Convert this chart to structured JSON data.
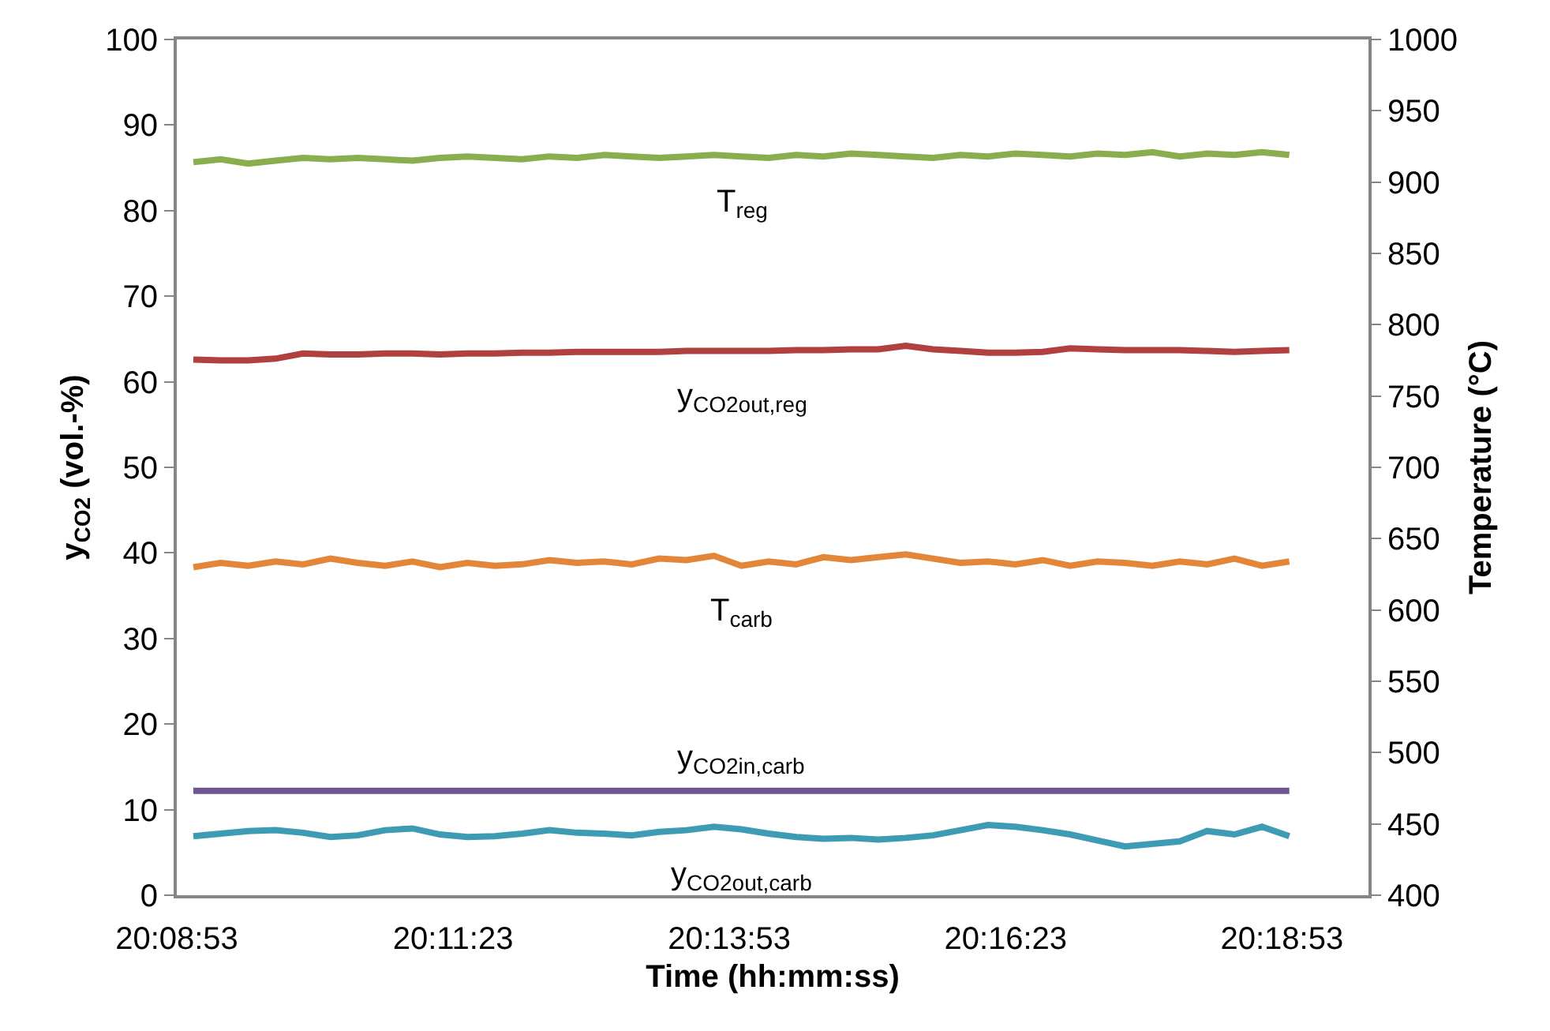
{
  "chart_data": {
    "type": "line",
    "xlabel": "Time (hh:mm:ss)",
    "ylabel": "y$_{CO2}$ (vol.-%)",
    "y2label": "Temperature (°C)",
    "x": [
      20.15056,
      20.15469,
      20.15882,
      20.16295,
      20.16709,
      20.17122,
      20.17535,
      20.17948,
      20.18361,
      20.18775,
      20.19188,
      20.19601,
      20.20014,
      20.20427,
      20.20841,
      20.21254,
      20.21667,
      20.2208,
      20.22493,
      20.22907,
      20.2332,
      20.23733,
      20.24146,
      20.24559,
      20.24973,
      20.25386,
      20.25799,
      20.26212,
      20.26625,
      20.27039,
      20.27452,
      20.27865,
      20.28278,
      20.28691,
      20.29105,
      20.29518,
      20.29931,
      20.30344,
      20.30757,
      20.31171,
      20.31584
    ],
    "xlim": [
      20.14806,
      20.32778
    ],
    "xticks": [
      {
        "value": 20.14806,
        "label": "20:08:53"
      },
      {
        "value": 20.18972,
        "label": "20:11:23"
      },
      {
        "value": 20.23139,
        "label": "20:13:53"
      },
      {
        "value": 20.27306,
        "label": "20:16:23"
      },
      {
        "value": 20.31472,
        "label": "20:18:53"
      }
    ],
    "ylim": [
      0,
      100
    ],
    "yticks": [
      0,
      10,
      20,
      30,
      40,
      50,
      60,
      70,
      80,
      90,
      100
    ],
    "y2lim": [
      400,
      1000
    ],
    "y2ticks": [
      400,
      450,
      500,
      550,
      600,
      650,
      700,
      750,
      800,
      850,
      900,
      950,
      1000
    ],
    "grid": false,
    "marker": "none",
    "line_style": "solid",
    "legend": false,
    "series": [
      {
        "name": "T$_{reg}$",
        "color": "#8aad4e",
        "axis": "y2",
        "values": [
          914,
          916,
          913,
          915,
          917,
          916,
          917,
          916,
          915,
          917,
          918,
          917,
          916,
          918,
          917,
          919,
          918,
          917,
          918,
          919,
          918,
          917,
          919,
          918,
          920,
          919,
          918,
          917,
          919,
          918,
          920,
          919,
          918,
          920,
          919,
          921,
          918,
          920,
          919,
          921,
          919
        ]
      },
      {
        "name": "y$_{CO2out,reg}$",
        "color": "#b0413e",
        "values": [
          62.6,
          62.5,
          62.5,
          62.7,
          63.3,
          63.2,
          63.2,
          63.3,
          63.3,
          63.2,
          63.3,
          63.3,
          63.4,
          63.4,
          63.5,
          63.5,
          63.5,
          63.5,
          63.6,
          63.6,
          63.6,
          63.6,
          63.7,
          63.7,
          63.8,
          63.8,
          64.2,
          63.8,
          63.6,
          63.4,
          63.4,
          63.5,
          63.9,
          63.8,
          63.7,
          63.7,
          63.7,
          63.6,
          63.5,
          63.6,
          63.7
        ]
      },
      {
        "name": "T$_{carb}$",
        "color": "#e3863a",
        "axis": "y2",
        "values": [
          630,
          633,
          631,
          634,
          632,
          636,
          633,
          631,
          634,
          630,
          633,
          631,
          632,
          635,
          633,
          634,
          632,
          636,
          635,
          638,
          631,
          634,
          632,
          637,
          635,
          637,
          639,
          636,
          633,
          634,
          632,
          635,
          631,
          634,
          633,
          631,
          634,
          632,
          636,
          631,
          634
        ]
      },
      {
        "name": "y$_{CO2in,carb}$",
        "color": "#6c5590",
        "values": [
          12.2,
          12.2,
          12.2,
          12.2,
          12.2,
          12.2,
          12.2,
          12.2,
          12.2,
          12.2,
          12.2,
          12.2,
          12.2,
          12.2,
          12.2,
          12.2,
          12.2,
          12.2,
          12.2,
          12.2,
          12.2,
          12.2,
          12.2,
          12.2,
          12.2,
          12.2,
          12.2,
          12.2,
          12.2,
          12.2,
          12.2,
          12.2,
          12.2,
          12.2,
          12.2,
          12.2,
          12.2,
          12.2,
          12.2,
          12.2,
          12.2
        ]
      },
      {
        "name": "y$_{CO2out,carb}$",
        "color": "#3e9bb4",
        "values": [
          6.9,
          7.2,
          7.5,
          7.6,
          7.3,
          6.8,
          7.0,
          7.6,
          7.8,
          7.1,
          6.8,
          6.9,
          7.2,
          7.6,
          7.3,
          7.2,
          7.0,
          7.4,
          7.6,
          8.0,
          7.7,
          7.2,
          6.8,
          6.6,
          6.7,
          6.5,
          6.7,
          7.0,
          7.6,
          8.2,
          8.0,
          7.6,
          7.1,
          6.4,
          5.7,
          6.0,
          6.3,
          7.5,
          7.1,
          8.0,
          6.9
        ]
      }
    ]
  }
}
